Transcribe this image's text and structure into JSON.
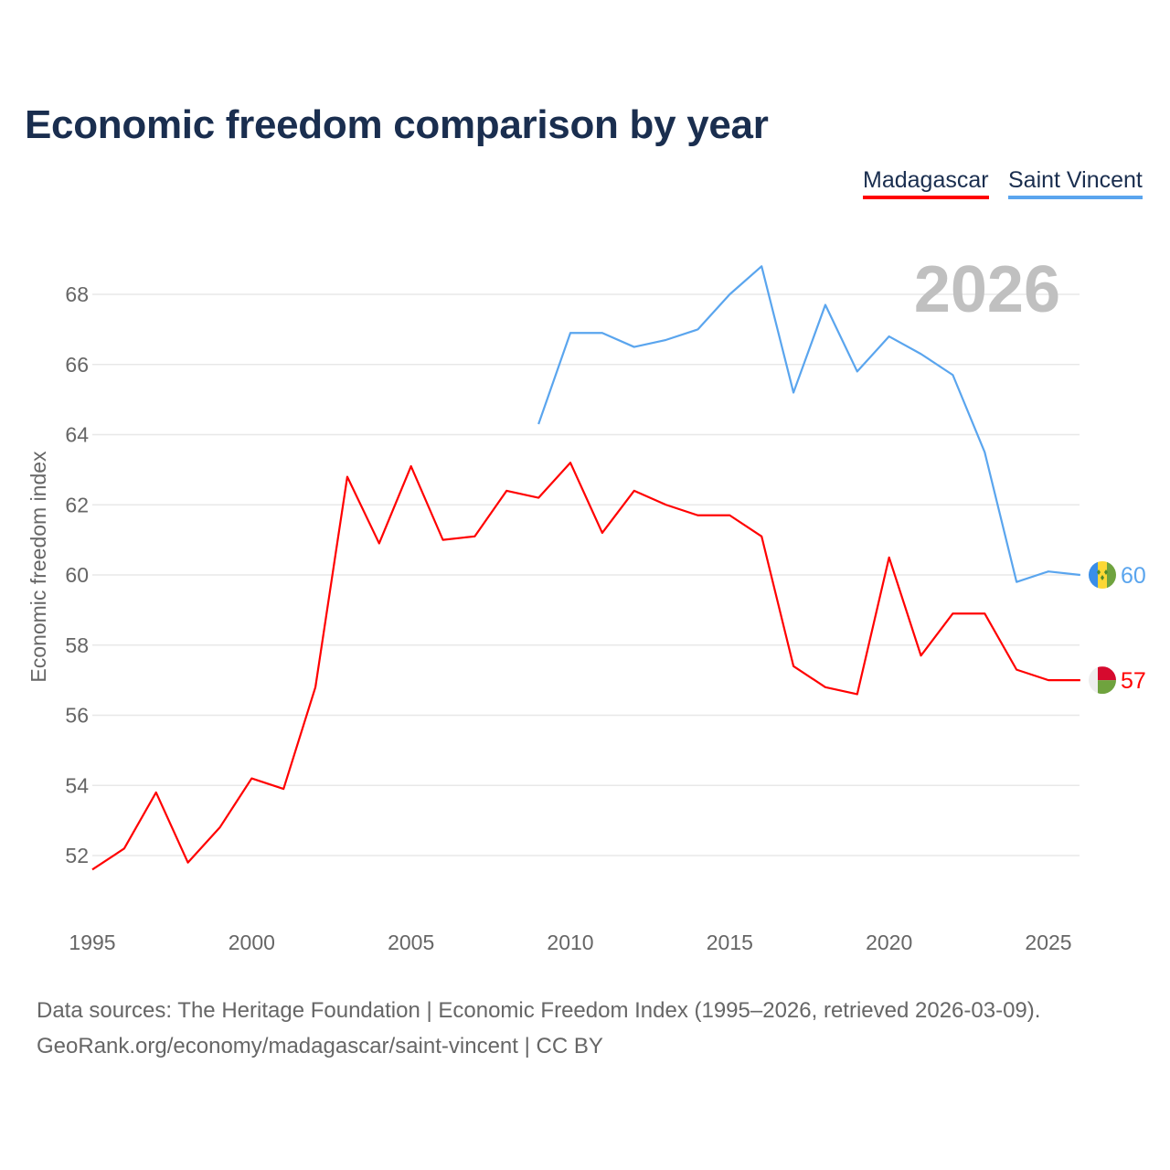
{
  "title": "Economic freedom comparison by year",
  "footer": {
    "line1": "Data sources: The Heritage Foundation | Economic Freedom Index (1995–2026, retrieved 2026-03-09).",
    "line2": "GeoRank.org/economy/madagascar/saint-vincent | CC BY"
  },
  "colors": {
    "madagascar": "#ff0000",
    "saint_vincent": "#5aa5ee"
  },
  "chart_data": {
    "type": "line",
    "title": "Economic freedom comparison by year",
    "ylabel": "Economic freedom index",
    "xlabel": "",
    "year_watermark": "2026",
    "xlim": [
      1995,
      2026
    ],
    "ylim": [
      50.8,
      70
    ],
    "xticks": [
      1995,
      2000,
      2005,
      2010,
      2015,
      2020,
      2025
    ],
    "yticks": [
      52,
      54,
      56,
      58,
      60,
      62,
      64,
      66,
      68
    ],
    "grid": true,
    "legend_position": "top-right",
    "series": [
      {
        "name": "Madagascar",
        "end_label": "57",
        "flag": "madagascar-flag",
        "x": [
          1995,
          1996,
          1997,
          1998,
          1999,
          2000,
          2001,
          2002,
          2003,
          2004,
          2005,
          2006,
          2007,
          2008,
          2009,
          2010,
          2011,
          2012,
          2013,
          2014,
          2015,
          2016,
          2017,
          2018,
          2019,
          2020,
          2021,
          2022,
          2023,
          2024,
          2025,
          2026
        ],
        "values": [
          51.6,
          52.2,
          53.8,
          51.8,
          52.8,
          54.2,
          53.9,
          56.8,
          62.8,
          60.9,
          63.1,
          61.0,
          61.1,
          62.4,
          62.2,
          63.2,
          61.2,
          62.4,
          62.0,
          61.7,
          61.7,
          61.1,
          57.4,
          56.8,
          56.6,
          60.5,
          57.7,
          58.9,
          58.9,
          57.3,
          57.0,
          57.0
        ]
      },
      {
        "name": "Saint Vincent",
        "end_label": "60",
        "flag": "saint-vincent-flag",
        "x": [
          2009,
          2010,
          2011,
          2012,
          2013,
          2014,
          2015,
          2016,
          2017,
          2018,
          2019,
          2020,
          2021,
          2022,
          2023,
          2024,
          2025,
          2026
        ],
        "values": [
          64.3,
          66.9,
          66.9,
          66.5,
          66.7,
          67.0,
          68.0,
          68.8,
          65.2,
          67.7,
          65.8,
          66.8,
          66.3,
          65.7,
          63.5,
          59.8,
          60.1,
          60.0
        ]
      }
    ]
  }
}
